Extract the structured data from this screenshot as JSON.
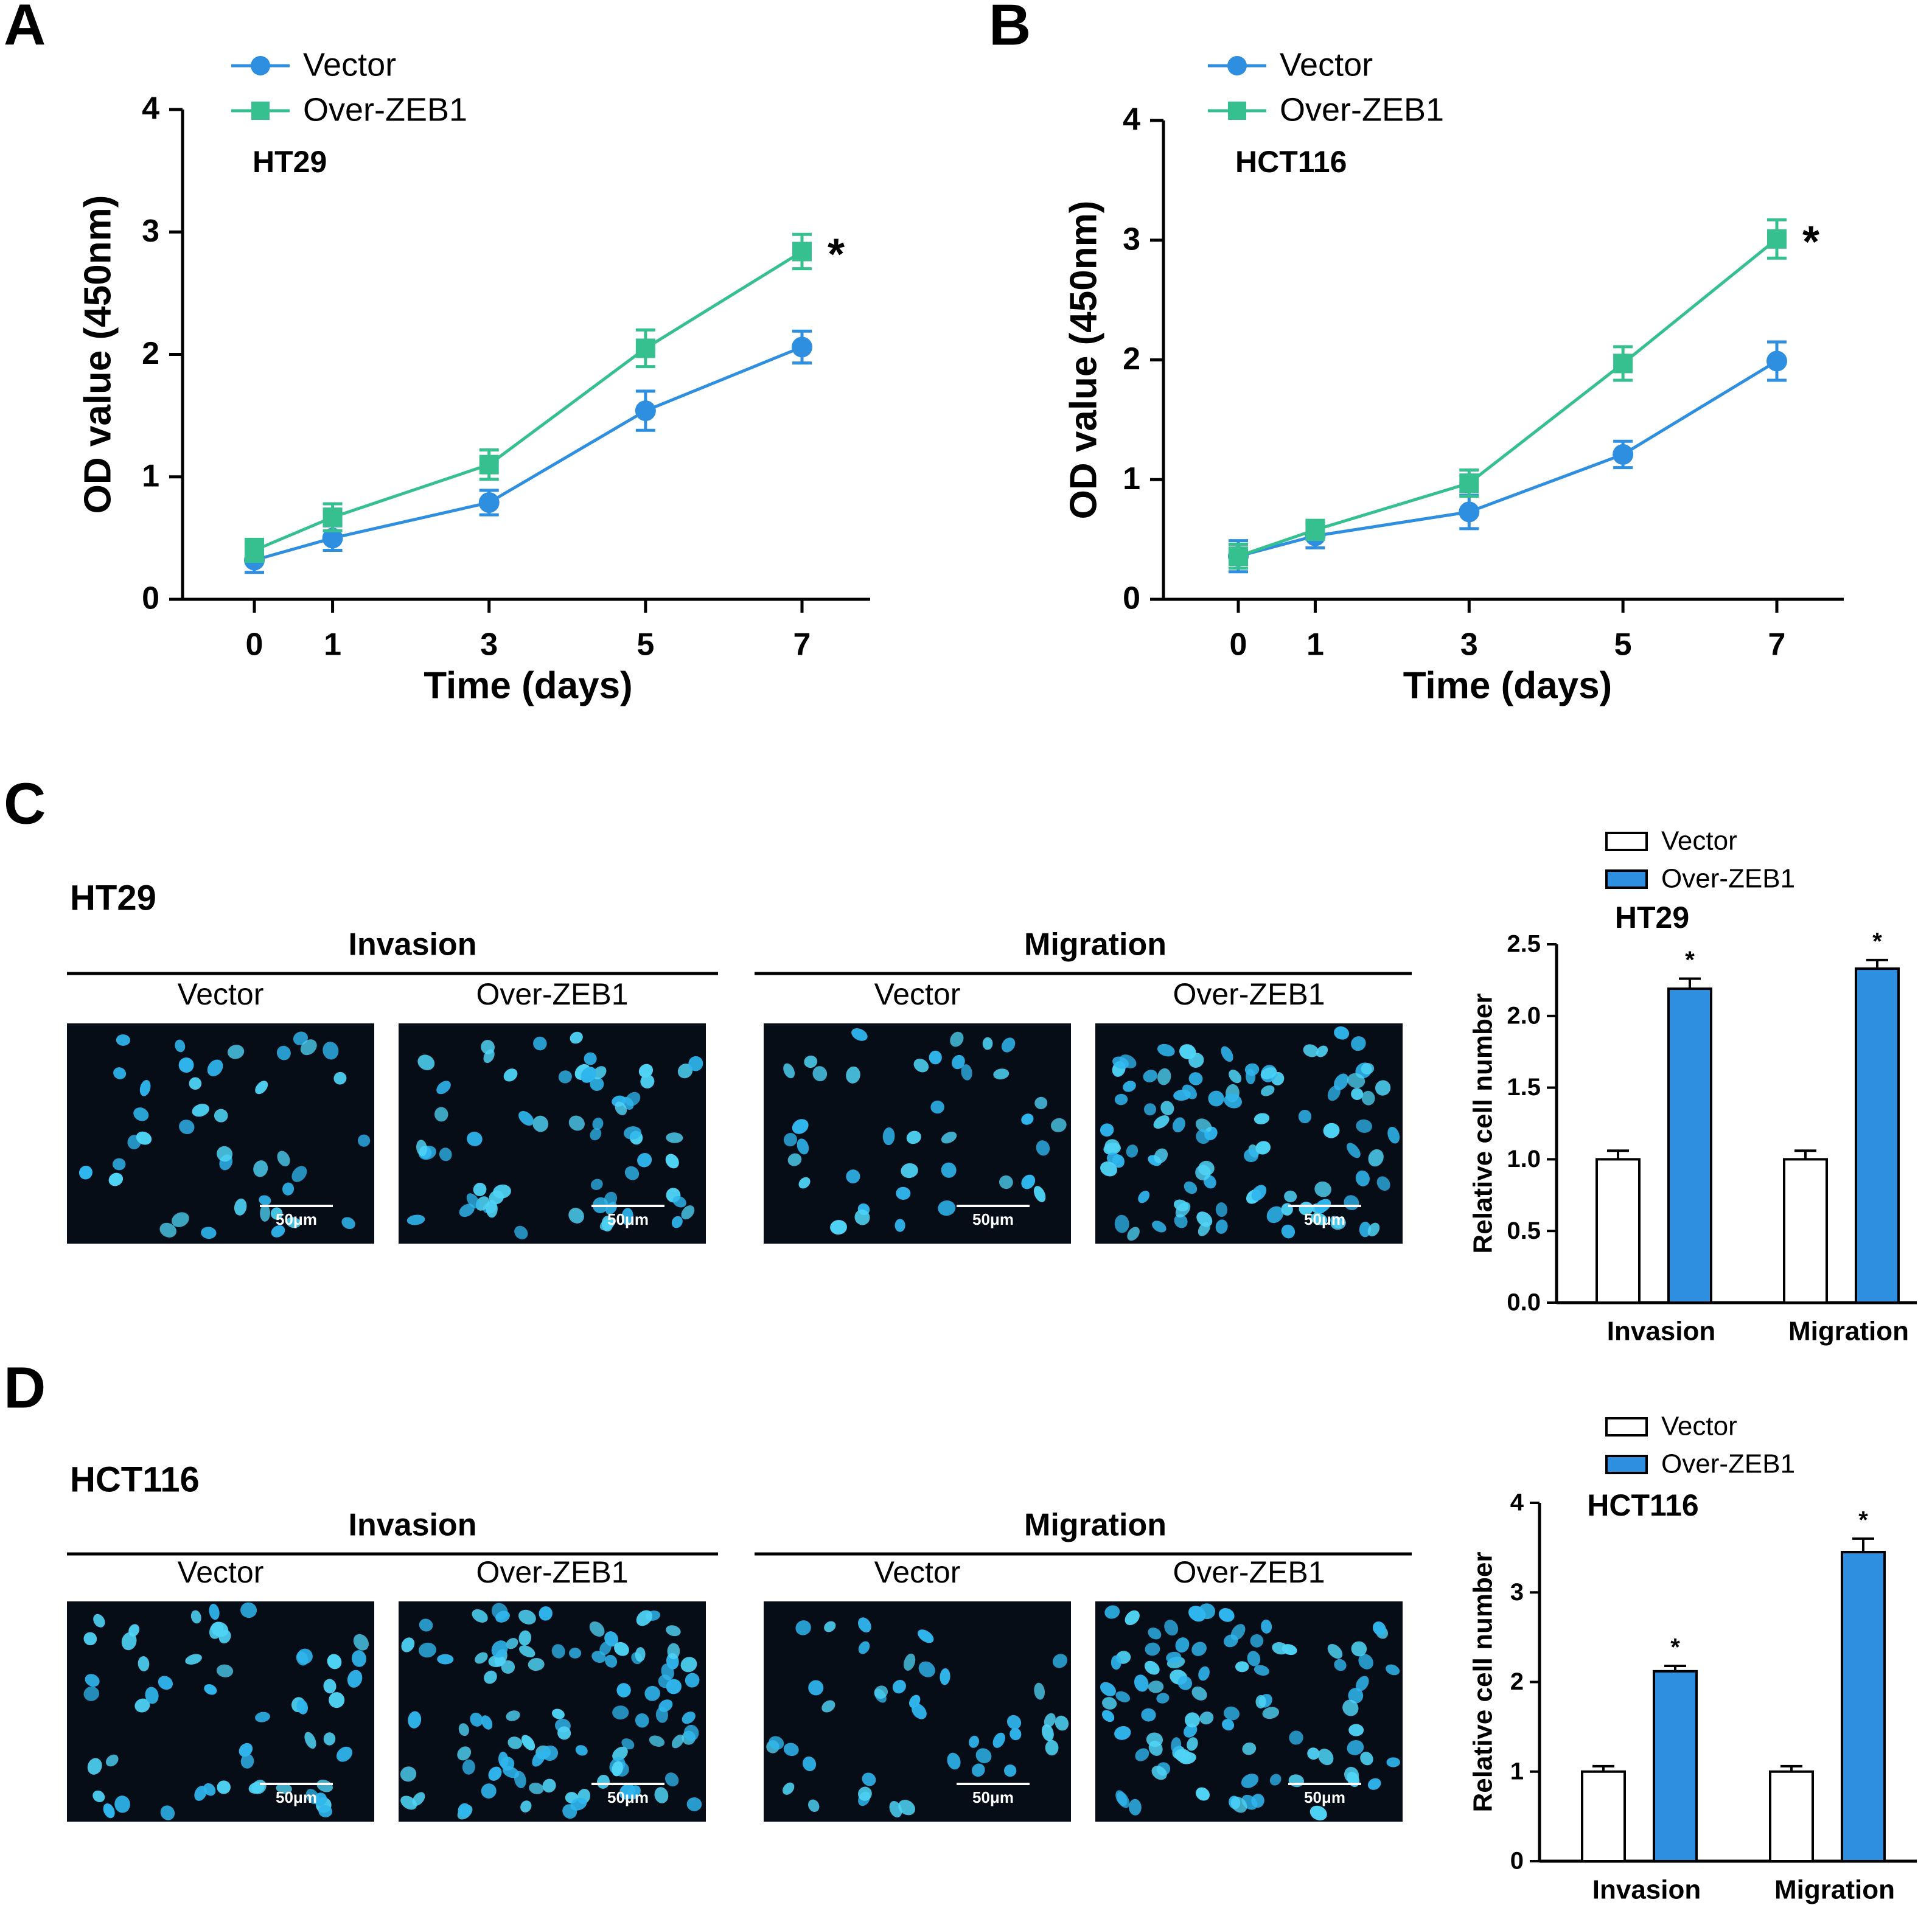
{
  "colors": {
    "vector_line": "#2e8ee0",
    "over_line": "#36c08f",
    "vector_bar": "#ffffff",
    "over_bar": "#2e8ee0",
    "micro_bg": "#060d17",
    "nuclei": "#2fb6ee",
    "nuclei_bright": "#4fd4f6",
    "text": "#000000"
  },
  "icons": {
    "vector_line_marker": "circle",
    "over_line_marker": "square",
    "vector_bar_swatch": "open-rectangle",
    "over_bar_swatch": "filled-rectangle"
  },
  "panels": {
    "A": {
      "label": "A",
      "cell_line": "HT29",
      "significance": "*"
    },
    "B": {
      "label": "B",
      "cell_line": "HCT116",
      "significance": "*"
    },
    "C": {
      "label": "C",
      "cell_line": "HT29",
      "invasion_header": "Invasion",
      "migration_header": "Migration",
      "image_labels": [
        "Vector",
        "Over-ZEB1",
        "Vector",
        "Over-ZEB1"
      ],
      "scale_bar": "50μm"
    },
    "D": {
      "label": "D",
      "cell_line": "HCT116",
      "invasion_header": "Invasion",
      "migration_header": "Migration",
      "image_labels": [
        "Vector",
        "Over-ZEB1",
        "Vector",
        "Over-ZEB1"
      ],
      "scale_bar": "50μm"
    }
  },
  "chart_data": [
    {
      "id": "A",
      "type": "line",
      "title": "HT29",
      "xlabel": "Time (days)",
      "ylabel": "OD value (450nm)",
      "x": [
        0,
        1,
        3,
        5,
        7
      ],
      "xtick_labels": [
        "0",
        "1",
        "3",
        "5",
        "7"
      ],
      "ylim": [
        0,
        4
      ],
      "yticks": [
        "0",
        "1",
        "2",
        "3",
        "4"
      ],
      "legend": [
        "Vector",
        "Over-ZEB1"
      ],
      "legend_position": "top-left",
      "grid": false,
      "series": [
        {
          "name": "Vector",
          "marker": "circle",
          "values": [
            0.32,
            0.5,
            0.79,
            1.54,
            2.06
          ],
          "errors": [
            0.1,
            0.1,
            0.1,
            0.16,
            0.13
          ]
        },
        {
          "name": "Over-ZEB1",
          "marker": "square",
          "values": [
            0.4,
            0.67,
            1.1,
            2.05,
            2.84
          ],
          "errors": [
            0.09,
            0.11,
            0.12,
            0.15,
            0.14
          ]
        }
      ],
      "annotation": "*"
    },
    {
      "id": "B",
      "type": "line",
      "title": "HCT116",
      "xlabel": "Time (days)",
      "ylabel": "OD value (450nm)",
      "x": [
        0,
        1,
        3,
        5,
        7
      ],
      "xtick_labels": [
        "0",
        "1",
        "3",
        "5",
        "7"
      ],
      "ylim": [
        0,
        4
      ],
      "yticks": [
        "0",
        "1",
        "2",
        "3",
        "4"
      ],
      "legend": [
        "Vector",
        "Over-ZEB1"
      ],
      "legend_position": "top-left",
      "grid": false,
      "series": [
        {
          "name": "Vector",
          "marker": "circle",
          "values": [
            0.36,
            0.53,
            0.73,
            1.21,
            1.99
          ],
          "errors": [
            0.13,
            0.1,
            0.14,
            0.11,
            0.16
          ]
        },
        {
          "name": "Over-ZEB1",
          "marker": "square",
          "values": [
            0.36,
            0.58,
            0.97,
            1.97,
            3.01
          ],
          "errors": [
            0.1,
            0.08,
            0.11,
            0.14,
            0.16
          ]
        }
      ],
      "annotation": "*"
    },
    {
      "id": "C",
      "type": "bar",
      "title": "HT29",
      "ylabel": "Relative cell number",
      "categories": [
        "Invasion",
        "Migration"
      ],
      "ylim": [
        0,
        2.5
      ],
      "yticks": [
        "0.0",
        "0.5",
        "1.0",
        "1.5",
        "2.0",
        "2.5"
      ],
      "legend": [
        "Vector",
        "Over-ZEB1"
      ],
      "legend_position": "top",
      "series": [
        {
          "name": "Vector",
          "values": [
            1.0,
            1.0
          ],
          "errors": [
            0.06,
            0.06
          ]
        },
        {
          "name": "Over-ZEB1",
          "values": [
            2.19,
            2.33
          ],
          "errors": [
            0.07,
            0.06
          ]
        }
      ],
      "annotations": [
        "*",
        "*"
      ]
    },
    {
      "id": "D",
      "type": "bar",
      "title": "HCT116",
      "ylabel": "Relative cell number",
      "categories": [
        "Invasion",
        "Migration"
      ],
      "ylim": [
        0,
        4
      ],
      "yticks": [
        "0",
        "1",
        "2",
        "3",
        "4"
      ],
      "legend": [
        "Vector",
        "Over-ZEB1"
      ],
      "legend_position": "top",
      "series": [
        {
          "name": "Vector",
          "values": [
            1.0,
            1.0
          ],
          "errors": [
            0.06,
            0.06
          ]
        },
        {
          "name": "Over-ZEB1",
          "values": [
            2.12,
            3.45
          ],
          "errors": [
            0.06,
            0.15
          ]
        }
      ],
      "annotations": [
        "*",
        "*"
      ]
    }
  ]
}
